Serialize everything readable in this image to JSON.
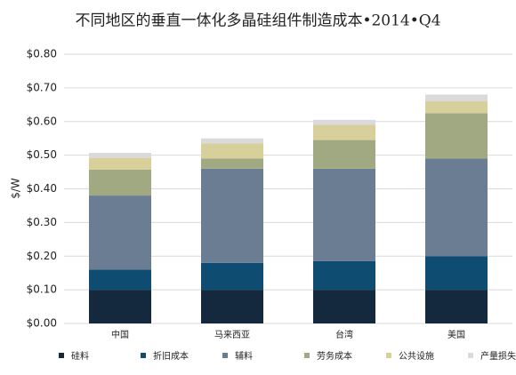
{
  "chart_data": {
    "type": "stacked_bar",
    "title": "不同地区的垂直一体化多晶硅组件制造成本•2014•Q4",
    "y_label": "$/W",
    "categories": [
      "中国",
      "马来西亚",
      "台湾",
      "美国"
    ],
    "series": [
      {
        "name": "硅料",
        "color": "#14293d",
        "values": [
          0.1,
          0.1,
          0.1,
          0.1
        ]
      },
      {
        "name": "折旧成本",
        "color": "#0f4c72",
        "values": [
          0.06,
          0.08,
          0.085,
          0.1
        ]
      },
      {
        "name": "辅料",
        "color": "#6b7d93",
        "values": [
          0.22,
          0.28,
          0.275,
          0.29
        ]
      },
      {
        "name": "劳务成本",
        "color": "#a0a982",
        "values": [
          0.077,
          0.03,
          0.085,
          0.135
        ]
      },
      {
        "name": "公共设施",
        "color": "#d8d09a",
        "values": [
          0.035,
          0.045,
          0.045,
          0.035
        ]
      },
      {
        "name": "产量损失",
        "color": "#dadadd",
        "values": [
          0.015,
          0.015,
          0.015,
          0.02
        ]
      }
    ],
    "ylim": [
      0,
      0.8
    ],
    "yticks": [
      {
        "value": 0,
        "label": "$0.00"
      },
      {
        "value": 0.1,
        "label": "$0.10"
      },
      {
        "value": 0.2,
        "label": "$0.20"
      },
      {
        "value": 0.3,
        "label": "$0.30"
      },
      {
        "value": 0.4,
        "label": "$0.40"
      },
      {
        "value": 0.5,
        "label": "$0.50"
      },
      {
        "value": 0.6,
        "label": "$0.60"
      },
      {
        "value": 0.7,
        "label": "$0.70"
      },
      {
        "value": 0.8,
        "label": "$0.80"
      }
    ],
    "grid": true
  }
}
